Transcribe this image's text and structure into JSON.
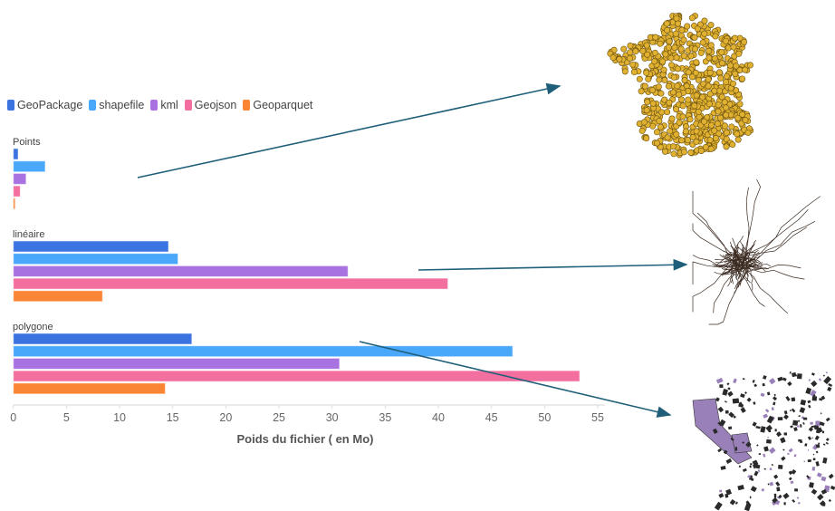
{
  "chart_data": {
    "type": "bar",
    "orientation": "horizontal",
    "xlabel": "Poids du fichier ( en Mo)",
    "xlim": [
      0,
      55
    ],
    "xticks": [
      0,
      5,
      10,
      15,
      20,
      25,
      30,
      35,
      40,
      45,
      50,
      55
    ],
    "categories": [
      "Points",
      "linéaire",
      "polygone"
    ],
    "legend_position": "top-left",
    "series": [
      {
        "name": "GeoPackage",
        "color": "#3b73e0",
        "values": [
          0.45,
          14.6,
          16.8
        ]
      },
      {
        "name": "shapefile",
        "color": "#4aa8fb",
        "values": [
          3.0,
          15.5,
          47.0
        ]
      },
      {
        "name": "kml",
        "color": "#a872e0",
        "values": [
          1.2,
          31.5,
          30.7
        ]
      },
      {
        "name": "Geojson",
        "color": "#f36f9f",
        "values": [
          0.65,
          40.9,
          53.3
        ]
      },
      {
        "name": "Geoparquet",
        "color": "#fa8535",
        "values": [
          0.17,
          8.4,
          14.3
        ]
      }
    ]
  },
  "colors": {
    "arrow": "#1f5f7a",
    "points_map": "#e0b030",
    "lines_map": "#3a2a20",
    "polygons_map": "#9a80b8"
  }
}
